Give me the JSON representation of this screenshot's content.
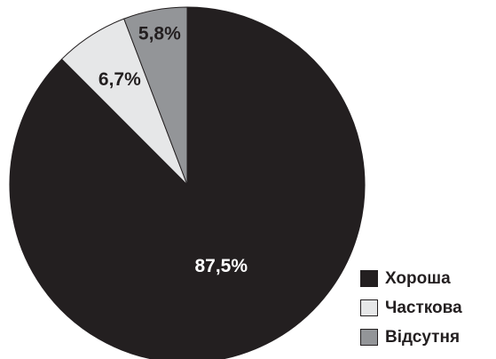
{
  "chart_data": {
    "type": "pie",
    "title": "",
    "slices": [
      {
        "label": "Хороша",
        "value": 87.5,
        "value_label": "87,5%",
        "color": "#231f20"
      },
      {
        "label": "Часткова",
        "value": 6.7,
        "value_label": "6,7%",
        "color": "#e6e7e8"
      },
      {
        "label": "Відсутня",
        "value": 5.8,
        "value_label": "5,8%",
        "color": "#939598"
      }
    ],
    "legend_position": "bottom-right"
  }
}
